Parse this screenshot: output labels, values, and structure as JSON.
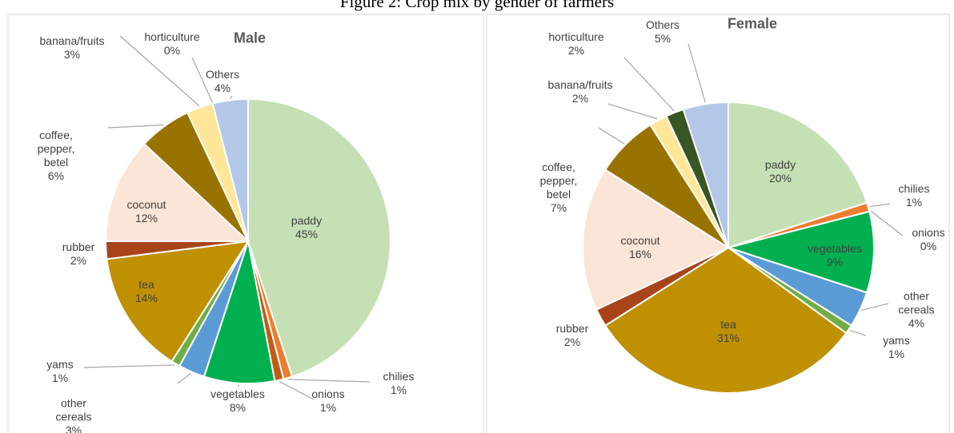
{
  "title": "Figure 2: Crop mix by gender of farmers",
  "chart_data": [
    {
      "type": "pie",
      "title": "Male",
      "categories": [
        "paddy",
        "chilies",
        "onions",
        "vegetables",
        "other cereals",
        "yams",
        "tea",
        "rubber",
        "coconut",
        "coffee, pepper, betel",
        "banana/fruits",
        "horticulture",
        "Others"
      ],
      "values": [
        45,
        1,
        1,
        8,
        3,
        1,
        14,
        2,
        12,
        6,
        3,
        0,
        4
      ],
      "value_labels": [
        "45%",
        "1%",
        "1%",
        "8%",
        "3%",
        "1%",
        "14%",
        "2%",
        "12%",
        "6%",
        "3%",
        "0%",
        "4%"
      ],
      "colors": [
        "#c5e0b4",
        "#ed7d31",
        "#c55a11",
        "#00b050",
        "#5b9bd5",
        "#70ad47",
        "#bf9000",
        "#a9441a",
        "#fbe5d6",
        "#997300",
        "#ffe699",
        "#375623",
        "#b4c7e7"
      ]
    },
    {
      "type": "pie",
      "title": "Female",
      "categories": [
        "paddy",
        "chilies",
        "onions",
        "vegetables",
        "other cereals",
        "yams",
        "tea",
        "rubber",
        "coconut",
        "coffee, pepper, betel",
        "banana/fruits",
        "horticulture",
        "Others"
      ],
      "values": [
        20,
        1,
        0,
        9,
        4,
        1,
        31,
        2,
        16,
        7,
        2,
        2,
        5
      ],
      "value_labels": [
        "20%",
        "1%",
        "0%",
        "9%",
        "4%",
        "1%",
        "31%",
        "2%",
        "16%",
        "7%",
        "2%",
        "2%",
        "5%"
      ],
      "colors": [
        "#c5e0b4",
        "#ed7d31",
        "#c55a11",
        "#00b050",
        "#5b9bd5",
        "#70ad47",
        "#bf9000",
        "#a9441a",
        "#fbe5d6",
        "#997300",
        "#ffe699",
        "#375623",
        "#b4c7e7"
      ]
    }
  ]
}
